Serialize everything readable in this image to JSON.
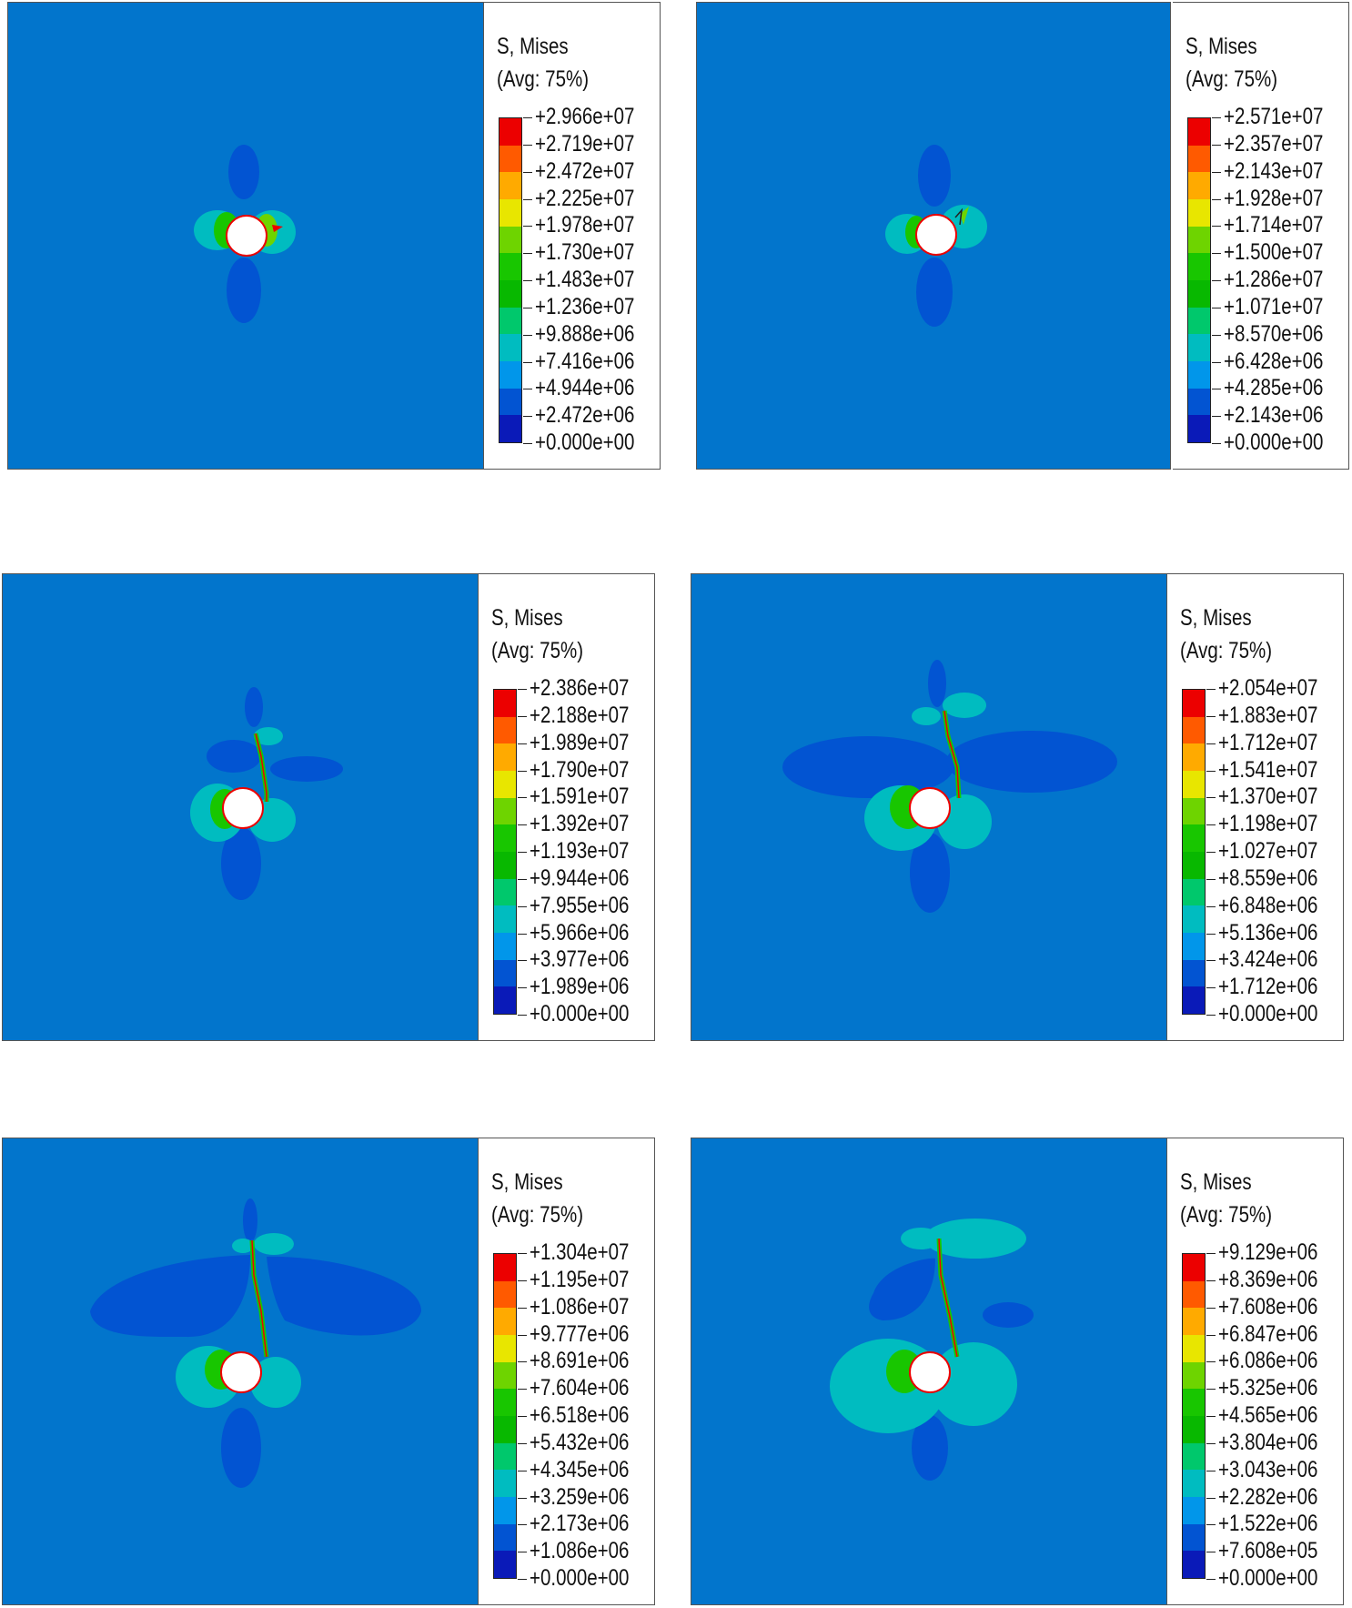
{
  "legend_colors": [
    "#ec0000",
    "#ff5a00",
    "#ffaa00",
    "#e8e600",
    "#6ed400",
    "#18c600",
    "#08b800",
    "#00c86c",
    "#00bcc0",
    "#0196ea",
    "#0254d2",
    "#0a1ab8"
  ],
  "panels": [
    {
      "title": "S, Mises",
      "subtitle": "(Avg: 75%)",
      "labels": [
        "+2.966e+07",
        "+2.719e+07",
        "+2.472e+07",
        "+2.225e+07",
        "+1.978e+07",
        "+1.730e+07",
        "+1.483e+07",
        "+1.236e+07",
        "+9.888e+06",
        "+7.416e+06",
        "+4.944e+06",
        "+2.472e+06",
        "+0.000e+00"
      ]
    },
    {
      "title": "S, Mises",
      "subtitle": "(Avg: 75%)",
      "labels": [
        "+2.571e+07",
        "+2.357e+07",
        "+2.143e+07",
        "+1.928e+07",
        "+1.714e+07",
        "+1.500e+07",
        "+1.286e+07",
        "+1.071e+07",
        "+8.570e+06",
        "+6.428e+06",
        "+4.285e+06",
        "+2.143e+06",
        "+0.000e+00"
      ]
    },
    {
      "title": "S, Mises",
      "subtitle": "(Avg: 75%)",
      "labels": [
        "+2.386e+07",
        "+2.188e+07",
        "+1.989e+07",
        "+1.790e+07",
        "+1.591e+07",
        "+1.392e+07",
        "+1.193e+07",
        "+9.944e+06",
        "+7.955e+06",
        "+5.966e+06",
        "+3.977e+06",
        "+1.989e+06",
        "+0.000e+00"
      ]
    },
    {
      "title": "S, Mises",
      "subtitle": "(Avg: 75%)",
      "labels": [
        "+2.054e+07",
        "+1.883e+07",
        "+1.712e+07",
        "+1.541e+07",
        "+1.370e+07",
        "+1.198e+07",
        "+1.027e+07",
        "+8.559e+06",
        "+6.848e+06",
        "+5.136e+06",
        "+3.424e+06",
        "+1.712e+06",
        "+0.000e+00"
      ]
    },
    {
      "title": "S, Mises",
      "subtitle": "(Avg: 75%)",
      "labels": [
        "+1.304e+07",
        "+1.195e+07",
        "+1.086e+07",
        "+9.777e+06",
        "+8.691e+06",
        "+7.604e+06",
        "+6.518e+06",
        "+5.432e+06",
        "+4.345e+06",
        "+3.259e+06",
        "+2.173e+06",
        "+1.086e+06",
        "+0.000e+00"
      ]
    },
    {
      "title": "S, Mises",
      "subtitle": "(Avg: 75%)",
      "labels": [
        "+9.129e+06",
        "+8.369e+06",
        "+7.608e+06",
        "+6.847e+06",
        "+6.086e+06",
        "+5.325e+06",
        "+4.565e+06",
        "+3.804e+06",
        "+3.043e+06",
        "+2.282e+06",
        "+1.522e+06",
        "+7.608e+05",
        "+0.000e+00"
      ]
    }
  ]
}
